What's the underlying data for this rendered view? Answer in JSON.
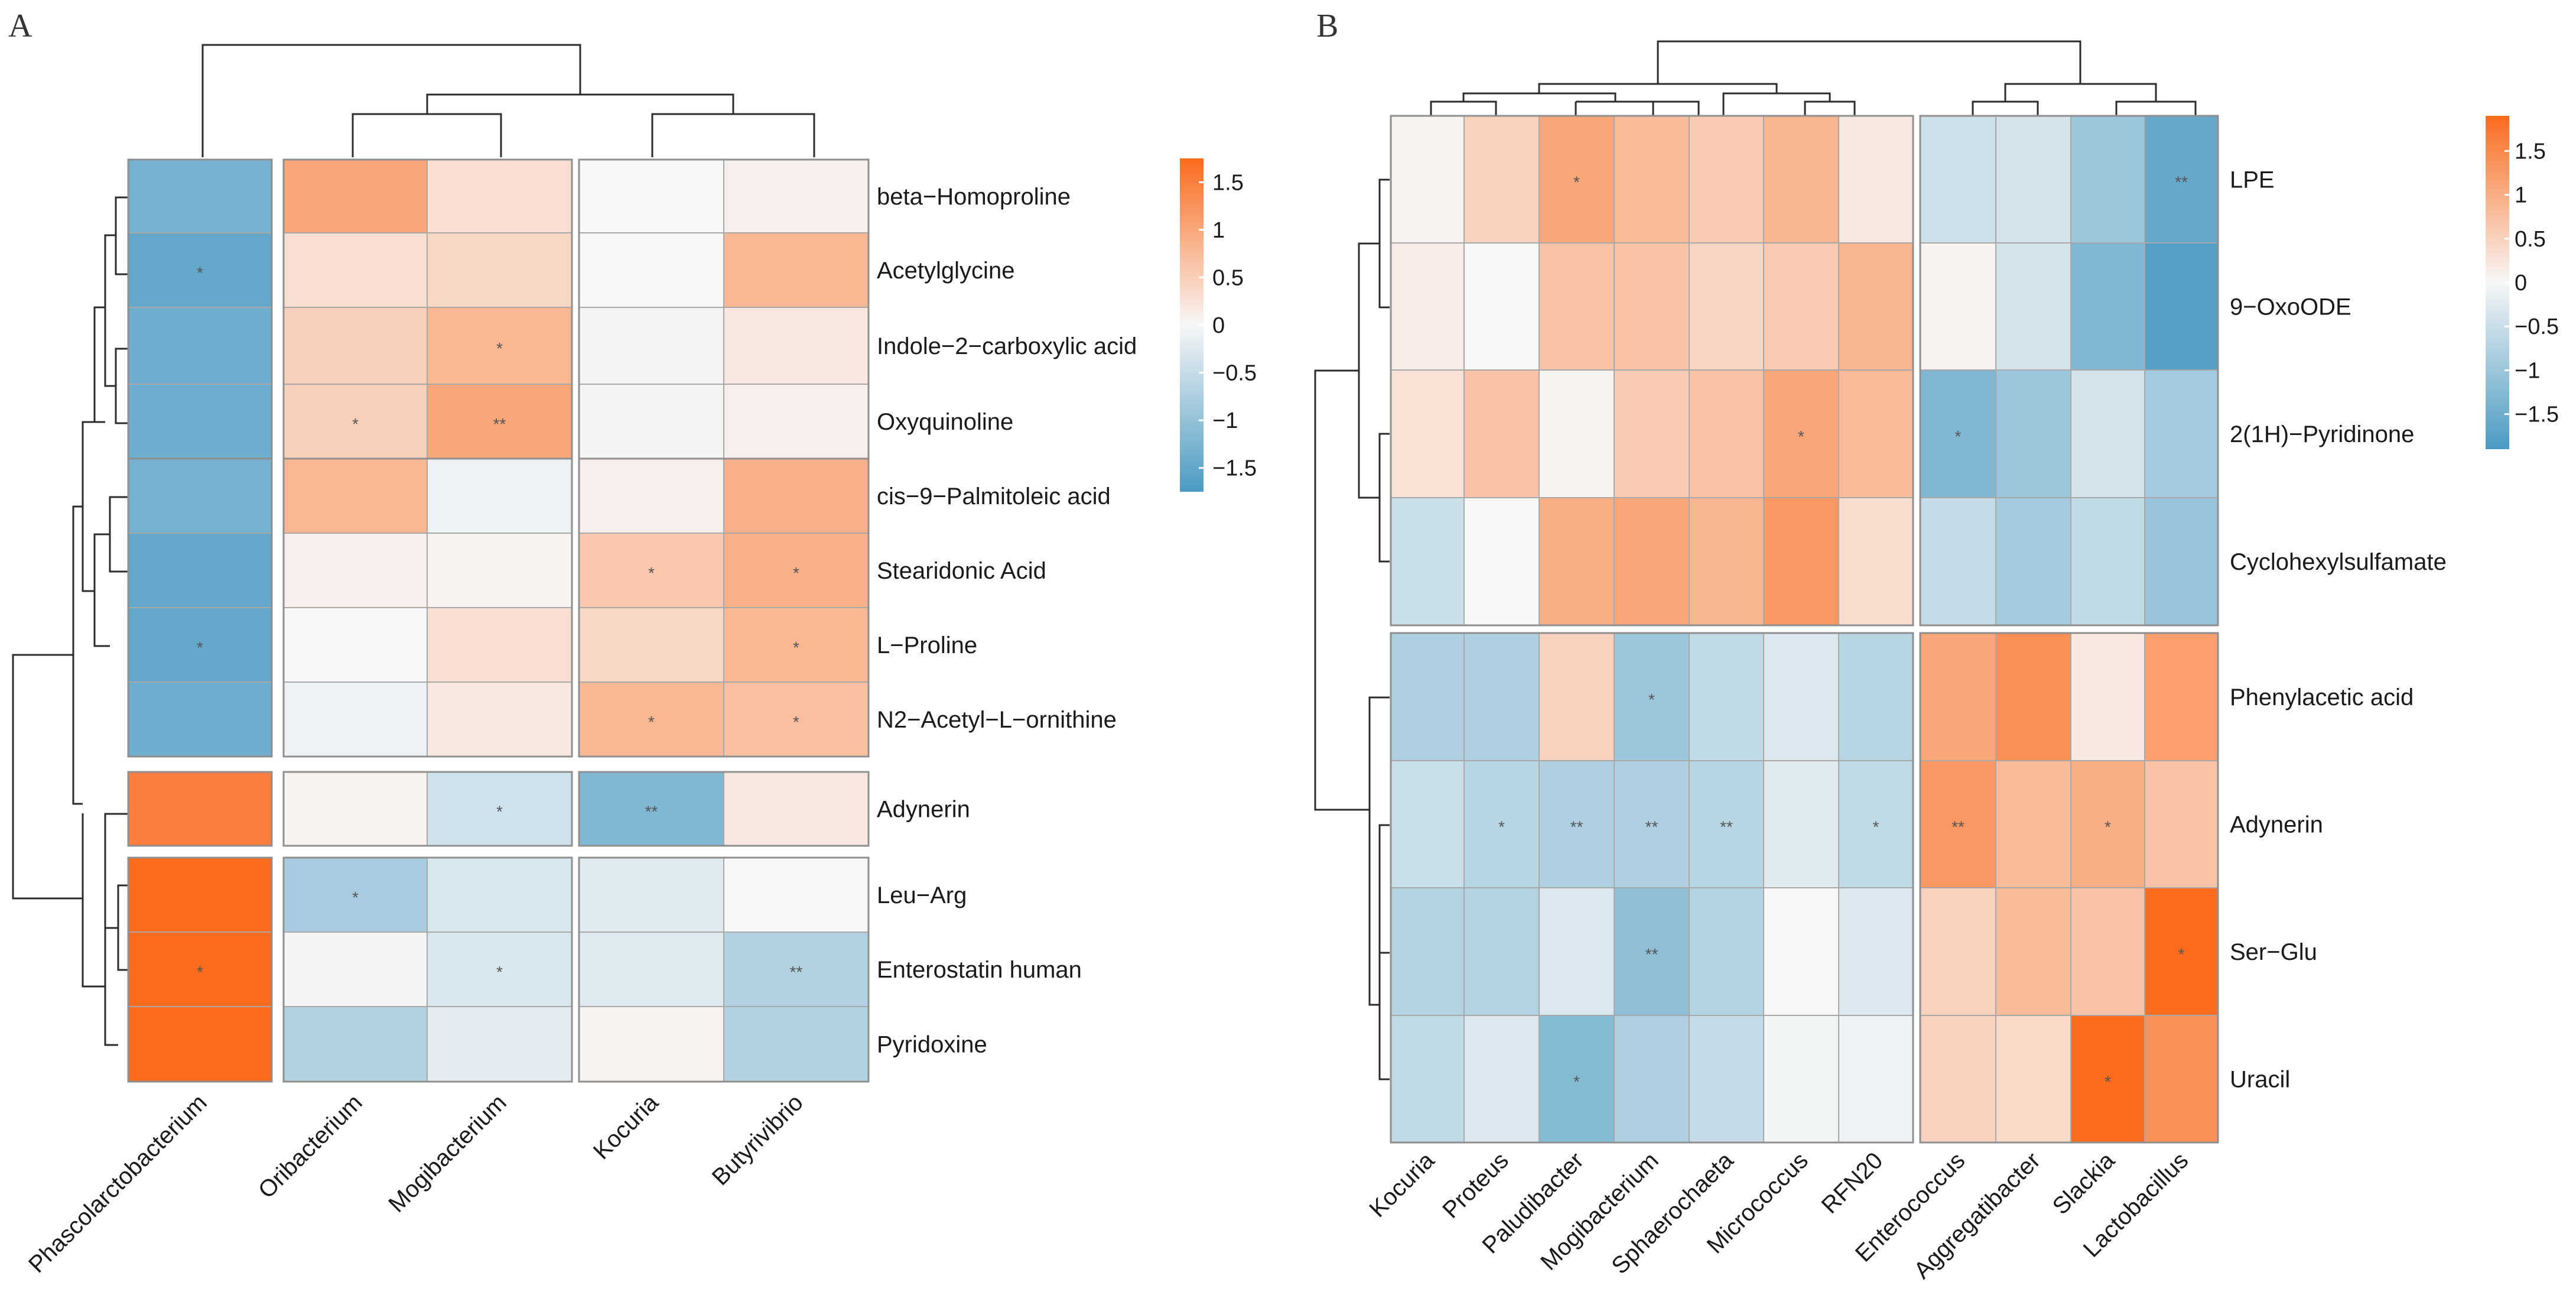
{
  "colors": {
    "low": "#4a9ac2",
    "mid": "#f7f7f7",
    "high": "#fb6b1d"
  },
  "chart_data": [
    {
      "panel": "A",
      "type": "heatmap",
      "value_range": [
        -1.75,
        1.75
      ],
      "legend": {
        "ticks": [
          1.5,
          1,
          0.5,
          0,
          -0.5,
          -1,
          -1.5
        ],
        "tick_labels": [
          "1.5",
          "1",
          "0.5",
          "0",
          "−0.5",
          "−1",
          "−1.5"
        ]
      },
      "rows": [
        "beta−Homoproline",
        "Acetylglycine",
        "Indole−2−carboxylic acid",
        "Oxyquinoline",
        "cis−9−Palmitoleic acid",
        "Stearidonic Acid",
        "L−Proline",
        "N2−Acetyl−L−ornithine",
        "Adynerin",
        "Leu−Arg",
        "Enterostatin human",
        "Pyridoxine"
      ],
      "columns": [
        "Phascolarctobacterium",
        "Oribacterium",
        "Mogibacterium",
        "Kocuria",
        "Butyrivibrio"
      ],
      "values": [
        [
          -1.3,
          1.0,
          0.3,
          0.0,
          0.1
        ],
        [
          -1.5,
          0.3,
          0.4,
          0.0,
          0.8
        ],
        [
          -1.4,
          0.5,
          0.8,
          -0.05,
          0.2
        ],
        [
          -1.4,
          0.5,
          1.0,
          -0.05,
          0.1
        ],
        [
          -1.3,
          0.8,
          -0.1,
          0.1,
          0.9
        ],
        [
          -1.5,
          0.1,
          0.05,
          0.6,
          0.9
        ],
        [
          -1.5,
          0.0,
          0.3,
          0.4,
          0.8
        ],
        [
          -1.4,
          -0.1,
          0.2,
          0.8,
          0.7
        ],
        [
          1.5,
          0.05,
          -0.4,
          -1.2,
          0.2
        ],
        [
          1.75,
          -0.8,
          -0.3,
          -0.25,
          0.0
        ],
        [
          1.75,
          -0.05,
          -0.3,
          -0.25,
          -0.7
        ],
        [
          1.75,
          -0.7,
          -0.2,
          0.05,
          -0.7
        ]
      ],
      "significance": [
        [
          "",
          "",
          "",
          "",
          ""
        ],
        [
          "*",
          "",
          "",
          "",
          ""
        ],
        [
          "",
          "",
          "*",
          "",
          ""
        ],
        [
          "",
          "*",
          "**",
          "",
          ""
        ],
        [
          "",
          "",
          "",
          "",
          ""
        ],
        [
          "",
          "",
          "",
          "*",
          "*"
        ],
        [
          "*",
          "",
          "",
          "",
          "*"
        ],
        [
          "",
          "",
          "",
          "*",
          "*"
        ],
        [
          "",
          "",
          "*",
          "**",
          ""
        ],
        [
          "",
          "*",
          "",
          "",
          ""
        ],
        [
          "*",
          "",
          "*",
          "",
          "**"
        ],
        [
          "",
          "",
          "",
          "",
          ""
        ]
      ]
    },
    {
      "panel": "B",
      "type": "heatmap",
      "value_range": [
        -1.9,
        1.9
      ],
      "legend": {
        "ticks": [
          1.5,
          1,
          0.5,
          0,
          -0.5,
          -1,
          -1.5
        ],
        "tick_labels": [
          "1.5",
          "1",
          "0.5",
          "0",
          "−0.5",
          "−1",
          "−1.5"
        ]
      },
      "rows": [
        "LPE",
        "9−OxoODE",
        "2(1H)−Pyridinone",
        "Cyclohexylsulfamate",
        "Phenylacetic acid",
        "Adynerin",
        "Ser−Glu",
        "Uracil"
      ],
      "columns": [
        "Kocuria",
        "Proteus",
        "Paludibacter",
        "Mogibacterium",
        "Sphaerochaeta",
        "Micrococcus",
        "RFN20",
        "Enterococcus",
        "Aggregatibacter",
        "Slackia",
        "Lactobacillus"
      ],
      "values": [
        [
          0.05,
          0.5,
          1.1,
          0.8,
          0.6,
          0.9,
          0.2,
          -0.45,
          -0.4,
          -1.0,
          -1.6
        ],
        [
          0.15,
          0.0,
          0.7,
          0.7,
          0.45,
          0.6,
          0.9,
          0.05,
          -0.4,
          -1.3,
          -1.8
        ],
        [
          0.3,
          0.7,
          0.05,
          0.6,
          0.7,
          1.1,
          0.8,
          -1.3,
          -1.0,
          -0.4,
          -0.9
        ],
        [
          -0.5,
          0.0,
          1.0,
          1.1,
          0.9,
          1.3,
          0.35,
          -0.55,
          -0.9,
          -0.6,
          -1.05
        ],
        [
          -0.8,
          -0.8,
          0.5,
          -1.0,
          -0.6,
          -0.3,
          -0.7,
          1.1,
          1.4,
          0.2,
          1.2
        ],
        [
          -0.5,
          -0.7,
          -0.8,
          -0.8,
          -0.7,
          -0.25,
          -0.6,
          1.3,
          0.8,
          1.0,
          0.7
        ],
        [
          -0.75,
          -0.75,
          -0.3,
          -1.15,
          -0.75,
          0.0,
          -0.3,
          0.5,
          0.8,
          0.7,
          1.9
        ],
        [
          -0.6,
          -0.3,
          -1.25,
          -0.8,
          -0.55,
          -0.05,
          -0.1,
          0.5,
          0.4,
          1.9,
          1.4
        ]
      ],
      "significance": [
        [
          "",
          "",
          "*",
          "",
          "",
          "",
          "",
          "",
          "",
          "",
          "**"
        ],
        [
          "",
          "",
          "",
          "",
          "",
          "",
          "",
          "",
          "",
          "",
          ""
        ],
        [
          "",
          "",
          "",
          "",
          "",
          "*",
          "",
          "*",
          "",
          "",
          ""
        ],
        [
          "",
          "",
          "",
          "",
          "",
          "",
          "",
          "",
          "",
          "",
          ""
        ],
        [
          "",
          "",
          "",
          "*",
          "",
          "",
          "",
          "",
          "",
          "",
          ""
        ],
        [
          "",
          "*",
          "**",
          "**",
          "**",
          "",
          "*",
          "**",
          "",
          "*",
          ""
        ],
        [
          "",
          "",
          "",
          "**",
          "",
          "",
          "",
          "",
          "",
          "",
          "*"
        ],
        [
          "",
          "",
          "*",
          "",
          "",
          "",
          "",
          "",
          "",
          "*",
          ""
        ]
      ]
    }
  ]
}
